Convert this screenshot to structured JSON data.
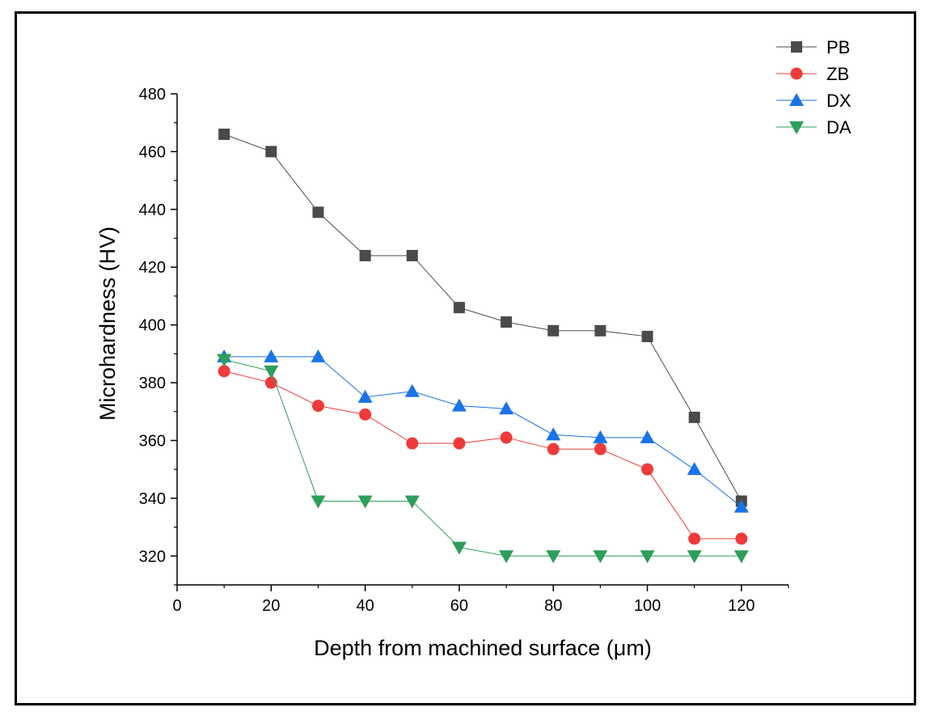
{
  "chart_data": {
    "type": "line",
    "title": "",
    "xlabel": "Depth from machined surface (μm)",
    "ylabel": "Microhardness (HV)",
    "xlim": [
      0,
      130
    ],
    "ylim": [
      310,
      480
    ],
    "xticks": [
      0,
      20,
      40,
      60,
      80,
      100,
      120
    ],
    "yticks": [
      320,
      340,
      360,
      380,
      400,
      420,
      440,
      460,
      480
    ],
    "x": [
      10,
      20,
      30,
      40,
      50,
      60,
      70,
      80,
      90,
      100,
      110,
      120
    ],
    "legend_position": "top-right",
    "series": [
      {
        "name": "PB",
        "color": "#4a4a4a",
        "marker": "square",
        "values": [
          466,
          460,
          439,
          424,
          424,
          406,
          401,
          398,
          398,
          396,
          368,
          339
        ]
      },
      {
        "name": "ZB",
        "color": "#ee3a3a",
        "marker": "circle",
        "values": [
          384,
          380,
          372,
          369,
          359,
          359,
          361,
          357,
          357,
          350,
          326,
          326
        ]
      },
      {
        "name": "DX",
        "color": "#1a73e8",
        "marker": "triangle-up",
        "values": [
          389,
          389,
          389,
          375,
          377,
          372,
          371,
          362,
          361,
          361,
          350,
          337
        ]
      },
      {
        "name": "DA",
        "color": "#2e9e5b",
        "marker": "triangle-down",
        "values": [
          388,
          384,
          339,
          339,
          339,
          323,
          320,
          320,
          320,
          320,
          320,
          320
        ]
      }
    ]
  }
}
